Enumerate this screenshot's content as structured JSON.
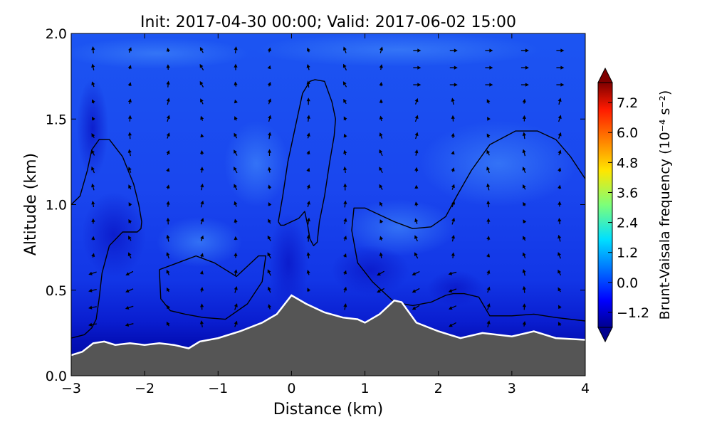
{
  "chart_data": {
    "type": "heatmap",
    "title": "Init: 2017-04-30 00:00; Valid: 2017-06-02 15:00",
    "xlabel": "Distance (km)",
    "ylabel": "Altitude (km)",
    "xlim": [
      -3,
      4
    ],
    "ylim": [
      0.0,
      2.0
    ],
    "xticks": [
      "−3",
      "−2",
      "−1",
      "0",
      "1",
      "2",
      "3",
      "4"
    ],
    "yticks": [
      "0.0",
      "0.5",
      "1.0",
      "1.5",
      "2.0"
    ],
    "colorbar": {
      "label": "Brunt-Vaisala frequency (10⁻⁴ s⁻²)",
      "min": -1.8,
      "max": 8.0,
      "ticks": [
        "−1.2",
        "0.0",
        "1.2",
        "2.4",
        "3.6",
        "4.8",
        "6.0",
        "7.2"
      ],
      "extend": "both",
      "colormap": "jet"
    },
    "terrain": {
      "x": [
        -3.0,
        -2.85,
        -2.7,
        -2.55,
        -2.4,
        -2.2,
        -2.0,
        -1.8,
        -1.6,
        -1.4,
        -1.25,
        -1.0,
        -0.7,
        -0.4,
        -0.2,
        0.0,
        0.2,
        0.45,
        0.7,
        0.9,
        1.0,
        1.2,
        1.4,
        1.5,
        1.7,
        2.0,
        2.3,
        2.6,
        3.0,
        3.3,
        3.6,
        4.0
      ],
      "y": [
        0.12,
        0.14,
        0.19,
        0.2,
        0.18,
        0.19,
        0.18,
        0.19,
        0.18,
        0.16,
        0.2,
        0.22,
        0.26,
        0.31,
        0.36,
        0.47,
        0.42,
        0.37,
        0.34,
        0.33,
        0.31,
        0.36,
        0.44,
        0.43,
        0.31,
        0.26,
        0.22,
        0.25,
        0.23,
        0.26,
        0.22,
        0.21
      ],
      "fill_color": "#555555",
      "outline_color": "#ffffff"
    },
    "contours": [
      {
        "x": [
          -3.0,
          -2.88,
          -2.78,
          -2.72,
          -2.62,
          -2.48,
          -2.3,
          -2.15,
          -2.08,
          -2.04,
          -2.05,
          -2.1,
          -2.2,
          -2.3,
          -2.48,
          -2.58,
          -2.62,
          -2.66,
          -2.72,
          -2.82,
          -3.0
        ],
        "y": [
          1.0,
          1.05,
          1.2,
          1.32,
          1.38,
          1.38,
          1.28,
          1.12,
          1.0,
          0.9,
          0.86,
          0.84,
          0.84,
          0.84,
          0.76,
          0.6,
          0.45,
          0.33,
          0.28,
          0.24,
          0.22
        ]
      },
      {
        "x": [
          -0.18,
          -0.12,
          -0.05,
          0.05,
          0.15,
          0.25,
          0.32,
          0.45,
          0.55,
          0.6,
          0.58,
          0.52,
          0.45,
          0.38,
          0.35,
          0.3,
          0.25,
          0.22,
          0.18,
          0.1,
          0.0,
          -0.1,
          -0.15,
          -0.18
        ],
        "y": [
          0.9,
          1.05,
          1.25,
          1.45,
          1.65,
          1.72,
          1.73,
          1.72,
          1.6,
          1.5,
          1.4,
          1.25,
          1.05,
          0.9,
          0.78,
          0.76,
          0.8,
          0.88,
          0.96,
          0.92,
          0.9,
          0.88,
          0.88,
          0.9
        ]
      },
      {
        "x": [
          -1.8,
          -1.55,
          -1.3,
          -1.05,
          -0.75,
          -0.45,
          -0.35,
          -0.4,
          -0.6,
          -0.9,
          -1.2,
          -1.45,
          -1.65,
          -1.78,
          -1.8
        ],
        "y": [
          0.62,
          0.66,
          0.7,
          0.66,
          0.58,
          0.7,
          0.7,
          0.55,
          0.42,
          0.33,
          0.34,
          0.36,
          0.38,
          0.45,
          0.62
        ]
      },
      {
        "x": [
          4.0,
          3.8,
          3.6,
          3.35,
          3.05,
          2.7,
          2.45,
          2.25,
          2.1,
          1.9,
          1.65,
          1.4,
          1.15,
          1.0,
          0.85,
          0.82,
          0.9,
          1.1,
          1.4,
          1.65,
          1.9,
          2.1,
          2.2,
          2.35,
          2.55,
          2.7,
          3.0,
          3.3,
          3.6,
          4.0
        ],
        "y": [
          1.15,
          1.28,
          1.38,
          1.43,
          1.43,
          1.35,
          1.2,
          1.05,
          0.93,
          0.87,
          0.86,
          0.9,
          0.95,
          0.98,
          0.98,
          0.85,
          0.66,
          0.55,
          0.43,
          0.41,
          0.43,
          0.47,
          0.48,
          0.48,
          0.46,
          0.35,
          0.35,
          0.36,
          0.34,
          0.32
        ]
      }
    ]
  }
}
